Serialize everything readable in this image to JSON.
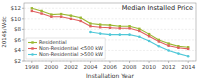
{
  "chart_data": {
    "type": "line",
    "title": "Median Installed Price",
    "xlabel": "Installation Year",
    "ylabel": "2014$/Wdc",
    "x": [
      1998,
      1999,
      2000,
      2001,
      2002,
      2003,
      2004,
      2005,
      2006,
      2007,
      2008,
      2009,
      2010,
      2011,
      2012,
      2013,
      2014
    ],
    "series": [
      {
        "name": "Residential",
        "color": "#9ab832",
        "marker": "square",
        "values": [
          12.0,
          11.5,
          10.8,
          10.9,
          10.6,
          10.2,
          9.1,
          8.9,
          8.8,
          8.6,
          8.6,
          8.1,
          7.1,
          6.0,
          5.3,
          4.8,
          4.6
        ]
      },
      {
        "name": "Non-Residential <500 kW",
        "color": "#e06060",
        "marker": "square",
        "values": [
          11.5,
          11.0,
          10.4,
          10.4,
          10.0,
          9.6,
          8.6,
          8.4,
          8.3,
          8.2,
          8.2,
          7.7,
          6.7,
          5.7,
          4.9,
          4.5,
          4.3
        ]
      },
      {
        "name": "Non-Residential >500 kW",
        "color": "#50c8d8",
        "marker": "circle",
        "values": [
          null,
          null,
          null,
          null,
          null,
          null,
          7.5,
          7.2,
          7.0,
          7.0,
          7.0,
          6.6,
          5.8,
          4.8,
          4.0,
          3.4,
          2.9
        ]
      }
    ],
    "xlim": [
      1997.2,
      2014.8
    ],
    "xticks": [
      1998,
      2000,
      2002,
      2004,
      2006,
      2008,
      2010,
      2012,
      2014
    ],
    "ylim": [
      2,
      13
    ],
    "yticks": [
      {
        "value": 2,
        "label": "$2"
      },
      {
        "value": 4,
        "label": "$4"
      },
      {
        "value": 6,
        "label": "$6"
      },
      {
        "value": 8,
        "label": "$8"
      },
      {
        "value": 10,
        "label": "$10"
      },
      {
        "value": 12,
        "label": "$12"
      }
    ],
    "grid": true,
    "legend": "lower left"
  }
}
